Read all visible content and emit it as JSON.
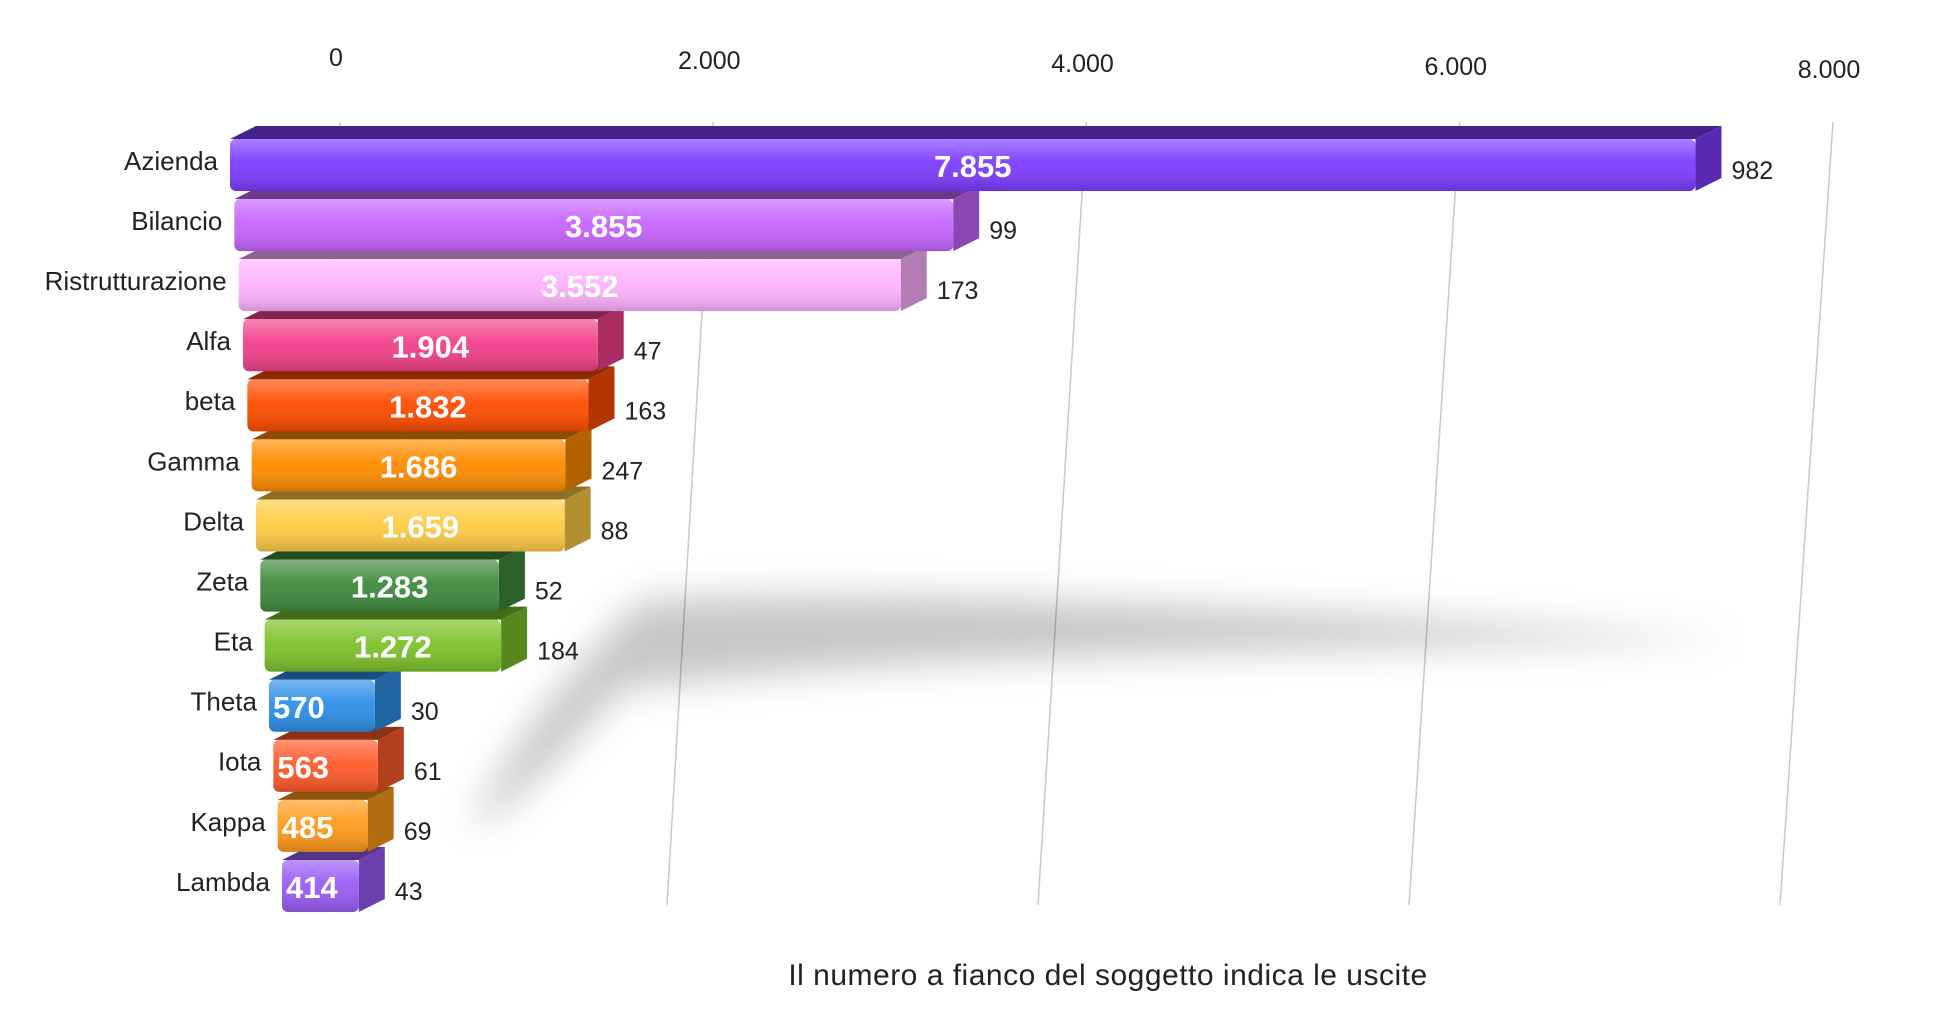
{
  "chart_data": {
    "type": "bar",
    "orientation": "horizontal",
    "title": "",
    "xlabel": "",
    "ylabel": "",
    "caption": "Il numero a fianco del soggetto indica le uscite",
    "xlim": [
      0,
      8000
    ],
    "xticks": [
      0,
      2000,
      4000,
      6000,
      8000
    ],
    "xtick_labels": [
      "0",
      "2.000",
      "4.000",
      "6.000",
      "8.000"
    ],
    "grid": true,
    "categories": [
      "Azienda",
      "Bilancio",
      "Ristrutturazione",
      "Alfa",
      "beta",
      "Gamma",
      "Delta",
      "Zeta",
      "Eta",
      "Theta",
      "Iota",
      "Kappa",
      "Lambda"
    ],
    "values": [
      7855,
      3855,
      3552,
      1904,
      1832,
      1686,
      1659,
      1283,
      1272,
      570,
      563,
      485,
      414
    ],
    "value_labels": [
      "7.855",
      "3.855",
      "3.552",
      "1.904",
      "1.832",
      "1.686",
      "1.659",
      "1.283",
      "1.272",
      "570",
      "563",
      "485",
      "414"
    ],
    "counts": [
      982,
      99,
      173,
      47,
      163,
      247,
      88,
      52,
      184,
      30,
      61,
      69,
      43
    ],
    "colors": [
      "#7d3cff",
      "#c665ff",
      "#ffb3ff",
      "#f2408a",
      "#ff4d00",
      "#ff8c00",
      "#ffcc44",
      "#3f8a3c",
      "#7cc22a",
      "#2e8fe8",
      "#ff5a2a",
      "#ff9a1a",
      "#9a5cf5"
    ]
  }
}
